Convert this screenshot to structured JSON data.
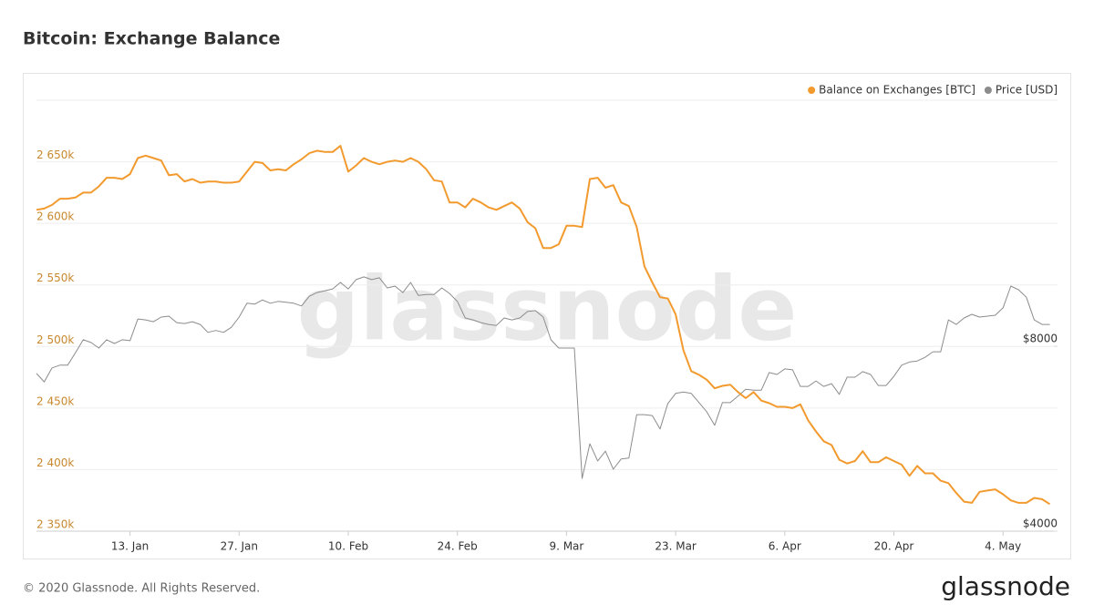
{
  "chart_data": {
    "type": "line",
    "title": "Bitcoin: Exchange Balance",
    "watermark": "glassnode",
    "footer": "© 2020 Glassnode. All Rights Reserved.",
    "brand": "glassnode",
    "grid": true,
    "legend": "top-right",
    "categories": [
      null,
      null,
      null,
      null,
      null,
      null,
      null,
      null,
      null,
      null,
      null,
      null,
      "13. Jan",
      null,
      null,
      null,
      null,
      null,
      null,
      null,
      null,
      null,
      null,
      null,
      null,
      null,
      "27. Jan",
      null,
      null,
      null,
      null,
      null,
      null,
      null,
      null,
      null,
      null,
      null,
      null,
      null,
      "10. Feb",
      null,
      null,
      null,
      null,
      null,
      null,
      null,
      null,
      null,
      null,
      null,
      null,
      null,
      "24. Feb",
      null,
      null,
      null,
      null,
      null,
      null,
      null,
      null,
      null,
      null,
      null,
      null,
      null,
      "9. Mar",
      null,
      null,
      null,
      null,
      null,
      null,
      null,
      null,
      null,
      null,
      null,
      null,
      null,
      "23. Mar",
      null,
      null,
      null,
      null,
      null,
      null,
      null,
      null,
      null,
      null,
      null,
      null,
      null,
      "6. Apr",
      null,
      null,
      null,
      null,
      null,
      null,
      null,
      null,
      null,
      null,
      null,
      null,
      null,
      "20. Apr",
      null,
      null,
      null,
      null,
      null,
      null,
      null,
      null,
      null,
      null,
      null,
      null,
      null,
      "4. May",
      null,
      null,
      null,
      null,
      null,
      null
    ],
    "ylim": [
      2350000,
      2700000
    ],
    "yticks": [
      {
        "value": 2350000,
        "label": "2 350k"
      },
      {
        "value": 2400000,
        "label": "2 400k"
      },
      {
        "value": 2450000,
        "label": "2 450k"
      },
      {
        "value": 2500000,
        "label": "2 500k"
      },
      {
        "value": 2550000,
        "label": "2 550k"
      },
      {
        "value": 2600000,
        "label": "2 600k"
      },
      {
        "value": 2650000,
        "label": "2 650k"
      }
    ],
    "y2lim": [
      4000,
      13320
    ],
    "y2ticks": [
      {
        "value": 4000,
        "label": "$4000"
      },
      {
        "value": 8000,
        "label": "$8000"
      }
    ],
    "series": [
      {
        "name": "Balance on Exchanges [BTC]",
        "color": "#f29a2e",
        "values": [
          2611000,
          2612000,
          2615000,
          2620000,
          2620000,
          2621000,
          2625000,
          2625000,
          2630000,
          2637000,
          2637000,
          2636000,
          2640000,
          2653000,
          2655000,
          2653000,
          2651000,
          2639000,
          2640000,
          2634000,
          2636000,
          2633000,
          2634000,
          2634000,
          2633000,
          2633000,
          2634000,
          2642000,
          2650000,
          2649000,
          2643000,
          2644000,
          2643000,
          2648000,
          2652000,
          2657000,
          2659000,
          2658000,
          2658000,
          2663000,
          2642000,
          2647000,
          2653000,
          2650000,
          2648000,
          2650000,
          2651000,
          2650000,
          2653000,
          2650000,
          2644000,
          2635000,
          2634000,
          2617000,
          2617000,
          2613000,
          2620000,
          2617000,
          2613000,
          2611000,
          2614000,
          2617000,
          2612000,
          2601000,
          2596000,
          2580000,
          2580000,
          2583000,
          2598000,
          2598000,
          2597000,
          2636000,
          2637000,
          2629000,
          2631000,
          2617000,
          2614000,
          2597000,
          2565000,
          2552000,
          2540000,
          2539000,
          2526000,
          2497000,
          2480000,
          2477000,
          2473000,
          2466000,
          2468000,
          2469000,
          2463000,
          2458000,
          2463000,
          2456000,
          2454000,
          2451000,
          2451000,
          2450000,
          2453000,
          2440000,
          2431000,
          2423000,
          2420000,
          2408000,
          2405000,
          2407000,
          2415000,
          2406000,
          2406000,
          2410000,
          2407000,
          2404000,
          2395000,
          2403000,
          2397000,
          2397000,
          2391000,
          2389000,
          2381000,
          2374000,
          2373000,
          2382000,
          2383000,
          2384000,
          2380000,
          2375000,
          2373000,
          2373000,
          2377000,
          2376000,
          2372000
        ]
      },
      {
        "name": "Price [USD]",
        "color": "#8c8c8c",
        "axis": "y2",
        "values": [
          7410,
          7230,
          7530,
          7590,
          7590,
          7860,
          8140,
          8080,
          7960,
          8140,
          8060,
          8140,
          8120,
          8590,
          8570,
          8530,
          8630,
          8650,
          8510,
          8490,
          8530,
          8470,
          8300,
          8340,
          8300,
          8410,
          8630,
          8930,
          8910,
          9000,
          8930,
          8970,
          8950,
          8930,
          8870,
          9080,
          9160,
          9200,
          9240,
          9380,
          9240,
          9440,
          9500,
          9440,
          9480,
          9260,
          9300,
          9160,
          9380,
          9100,
          9120,
          9120,
          9260,
          9140,
          8970,
          8610,
          8570,
          8510,
          8470,
          8450,
          8610,
          8570,
          8610,
          8750,
          8770,
          8630,
          8140,
          7960,
          7960,
          7960,
          5140,
          5890,
          5520,
          5730,
          5340,
          5560,
          5580,
          6520,
          6520,
          6500,
          6210,
          6760,
          6980,
          7010,
          6980,
          6780,
          6580,
          6290,
          6780,
          6780,
          6920,
          7070,
          7050,
          7050,
          7430,
          7390,
          7510,
          7490,
          7130,
          7130,
          7250,
          7130,
          7190,
          6960,
          7330,
          7330,
          7450,
          7390,
          7150,
          7150,
          7350,
          7590,
          7660,
          7680,
          7760,
          7880,
          7880,
          8570,
          8470,
          8610,
          8690,
          8630,
          8650,
          8670,
          8830,
          9300,
          9220,
          9060,
          8570,
          8470,
          8470
        ]
      }
    ]
  }
}
